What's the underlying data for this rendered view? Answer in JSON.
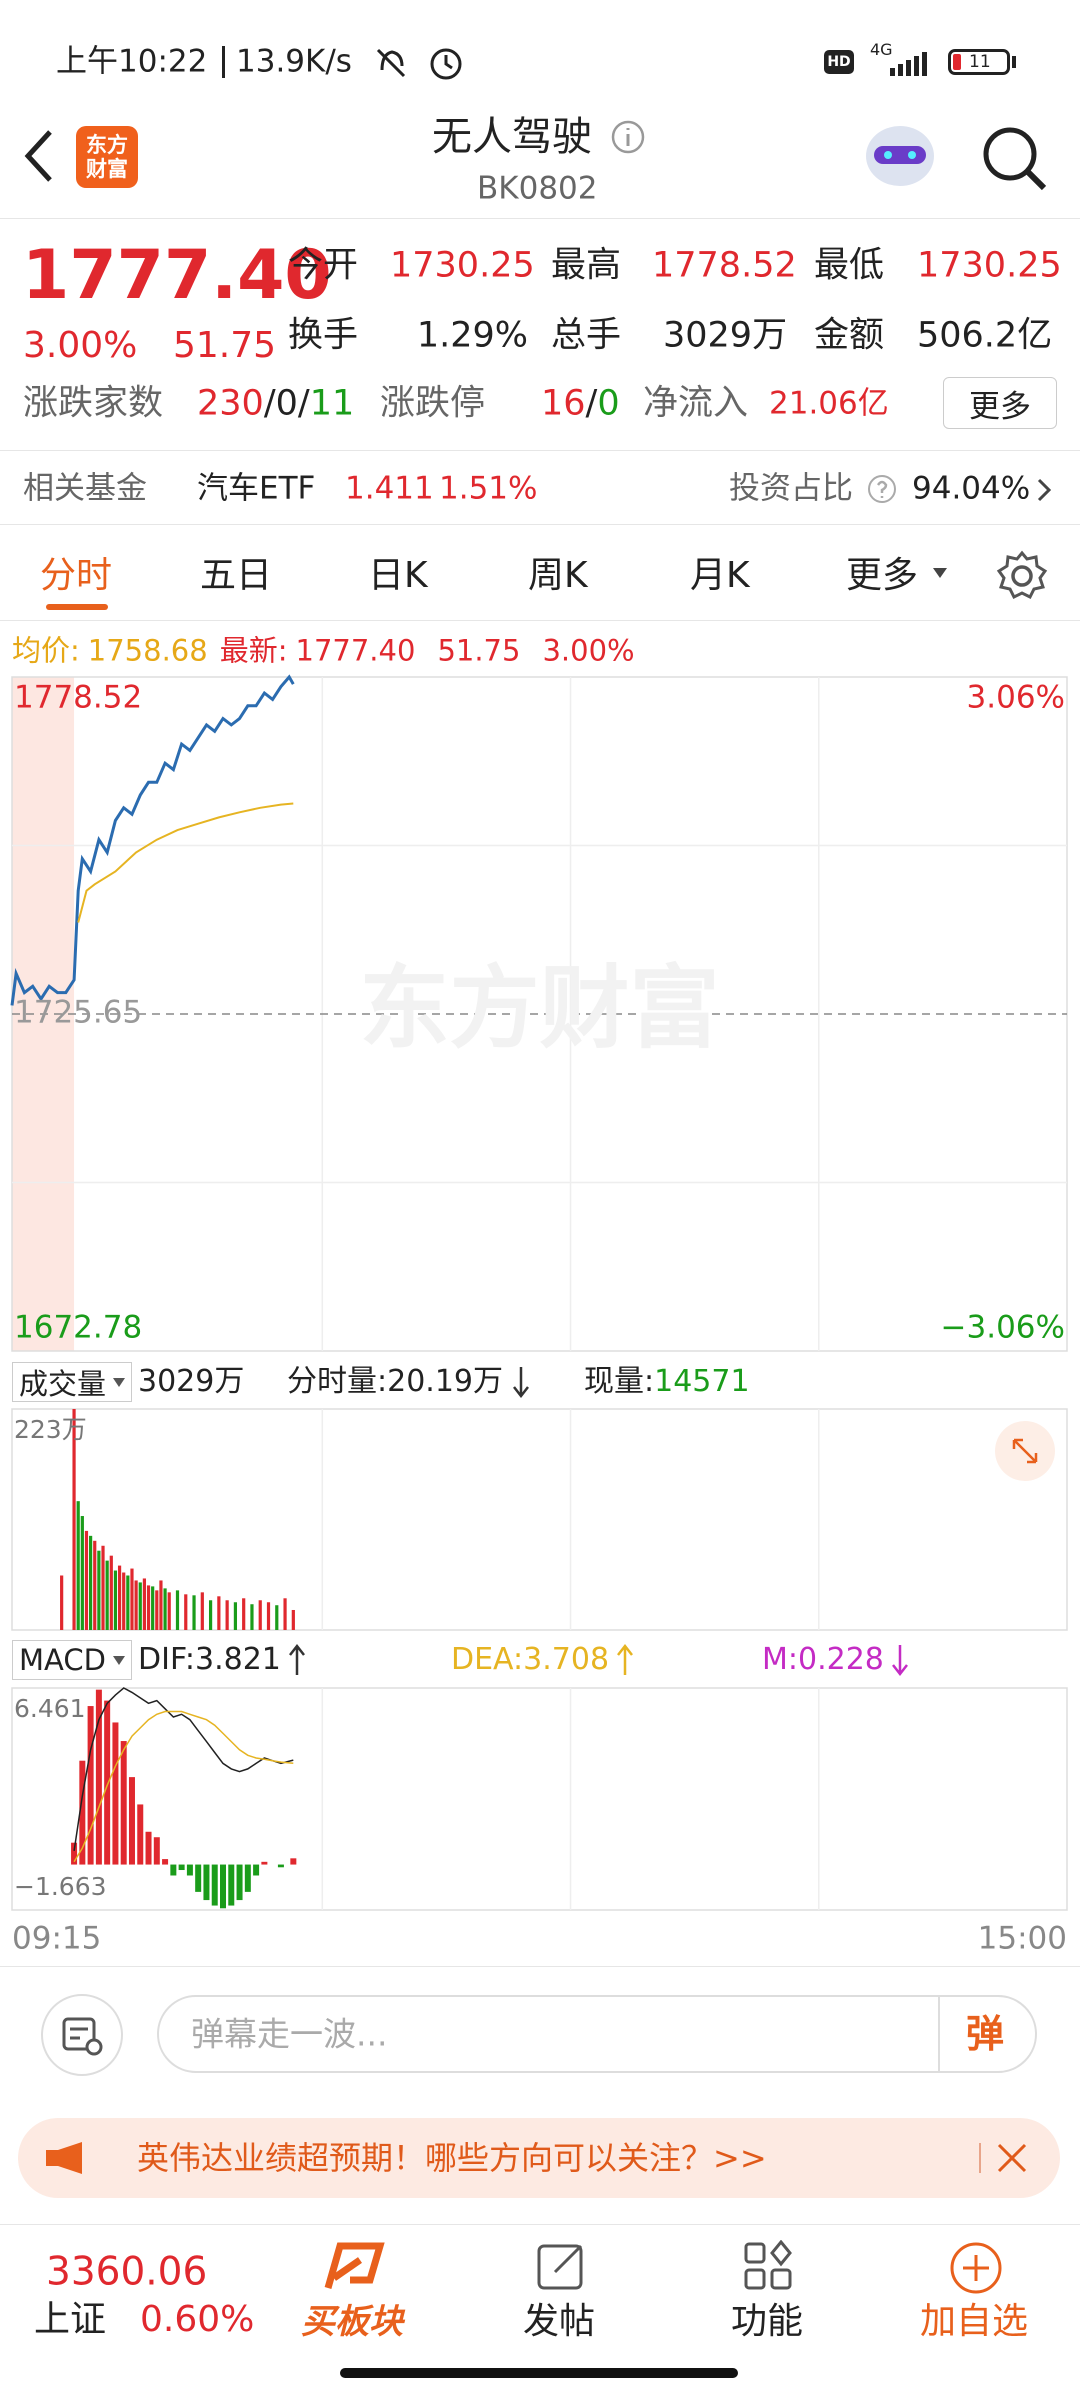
{
  "status_bar": {
    "time": "上午10:22",
    "speed": "13.9K/s",
    "hd": "HD",
    "network": "4G",
    "battery": "11"
  },
  "header": {
    "logo": [
      "东方",
      "财富"
    ],
    "title": "无人驾驶",
    "code": "BK0802"
  },
  "quote": {
    "price": "1777.40",
    "change_pct": "3.00%",
    "change": "51.75",
    "fields": [
      {
        "label": "今开",
        "value": "1730.25"
      },
      {
        "label": "最高",
        "value": "1778.52"
      },
      {
        "label": "最低",
        "value": "1730.25"
      },
      {
        "label": "换手",
        "value": "1.29%"
      },
      {
        "label": "总手",
        "value": "3029万"
      },
      {
        "label": "金额",
        "value": "506.2亿"
      }
    ],
    "breadth": {
      "label": "涨跌家数",
      "up": "230",
      "flat": "0",
      "down": "11",
      "sep": "/",
      "limit_label": "涨跌停",
      "limit_up": "16",
      "limit_down": "0",
      "inflow_label": "净流入",
      "inflow": "21.06亿",
      "more": "更多"
    }
  },
  "fund": {
    "label": "相关基金",
    "name": "汽车ETF",
    "price": "1.411",
    "pct": "1.51%",
    "ratio_label": "投资占比",
    "ratio": "94.04%"
  },
  "tabs": [
    "分时",
    "五日",
    "日K",
    "周K",
    "月K",
    "更多"
  ],
  "legend": {
    "avg_label": "均价:",
    "avg": "1758.68",
    "last_label": "最新:",
    "last": "1777.40",
    "change": "51.75",
    "pct": "3.00%"
  },
  "intraday": {
    "type": "line",
    "watermark": "东方财富",
    "xlim": [
      0,
      255
    ],
    "xgrid": [
      75,
      135,
      195
    ],
    "shade_x": [
      0,
      15
    ],
    "ylim": [
      1672.78,
      1778.52
    ],
    "yticks": [
      1778.52,
      1725.65,
      1672.78
    ],
    "ygrid": [
      1752.085,
      1699.215
    ],
    "y2lim": [
      -3.06,
      3.06
    ],
    "y2ticks": [
      {
        "value": 3.06,
        "label": "3.06%"
      },
      {
        "value": -3.06,
        "label": "−3.06%"
      }
    ],
    "series": [
      {
        "color": "#2b6cb0",
        "x": [
          0,
          1,
          3,
          5,
          7,
          9,
          11,
          13,
          15,
          16,
          17,
          19,
          21,
          23,
          25,
          27,
          29,
          31,
          33,
          35,
          37,
          39,
          41,
          43,
          45,
          47,
          49,
          51,
          53,
          55,
          57,
          59,
          61,
          63,
          65,
          67,
          68
        ],
        "values": [
          1727,
          1732,
          1729,
          1730,
          1728,
          1730,
          1729,
          1729,
          1731,
          1745,
          1750,
          1748,
          1753,
          1751,
          1756,
          1758,
          1757,
          1760,
          1762,
          1762,
          1765,
          1764,
          1768,
          1767,
          1769,
          1771,
          1770,
          1772,
          1771,
          1772,
          1774,
          1774,
          1776,
          1775,
          1777,
          1778.52,
          1777.4
        ]
      },
      {
        "color": "#e6b422",
        "x": [
          16,
          18,
          20,
          25,
          30,
          35,
          40,
          45,
          50,
          55,
          60,
          65,
          68
        ],
        "values": [
          1740,
          1745,
          1746,
          1748,
          1751,
          1753,
          1754.5,
          1755.5,
          1756.5,
          1757.3,
          1758,
          1758.5,
          1758.68
        ]
      }
    ]
  },
  "volume_header": {
    "selector": "成交量",
    "total": "3029万",
    "tick_label": "分时量:",
    "tick": "20.19万",
    "now_label": "现量:",
    "now": "14571"
  },
  "volume": {
    "type": "bar",
    "xlim": [
      0,
      255
    ],
    "ylim": [
      0,
      223
    ],
    "yticks": [
      {
        "value": 223,
        "label": "223万"
      }
    ],
    "x": [
      12,
      15,
      16,
      17,
      18,
      19,
      20,
      21,
      22,
      23,
      24,
      25,
      26,
      27,
      28,
      29,
      30,
      31,
      32,
      33,
      34,
      35,
      36,
      37,
      38,
      40,
      42,
      44,
      46,
      48,
      50,
      52,
      54,
      56,
      58,
      60,
      62,
      64,
      66,
      68
    ],
    "values": [
      55,
      223,
      130,
      115,
      100,
      95,
      90,
      80,
      85,
      70,
      75,
      60,
      65,
      58,
      55,
      62,
      50,
      48,
      52,
      45,
      44,
      40,
      50,
      42,
      38,
      40,
      36,
      35,
      38,
      30,
      34,
      30,
      28,
      32,
      26,
      30,
      28,
      25,
      32,
      20.19
    ],
    "colors": [
      "#e0282e",
      "#e0282e",
      "#1a9c1a",
      "#1a9c1a",
      "#e0282e",
      "#1a9c1a",
      "#e0282e",
      "#1a9c1a",
      "#e0282e",
      "#1a9c1a",
      "#e0282e",
      "#1a9c1a",
      "#e0282e",
      "#e0282e",
      "#1a9c1a",
      "#e0282e",
      "#e0282e",
      "#1a9c1a",
      "#e0282e",
      "#e0282e",
      "#1a9c1a",
      "#e0282e",
      "#e0282e",
      "#1a9c1a",
      "#e0282e",
      "#1a9c1a",
      "#e0282e",
      "#1a9c1a",
      "#e0282e",
      "#1a9c1a",
      "#e0282e",
      "#e0282e",
      "#1a9c1a",
      "#e0282e",
      "#1a9c1a",
      "#e0282e",
      "#e0282e",
      "#1a9c1a",
      "#e0282e",
      "#e0282e"
    ]
  },
  "macd_header": {
    "selector": "MACD",
    "dif": "DIF:3.821",
    "dea": "DEA:3.708",
    "m": "M:0.228"
  },
  "macd": {
    "type": "macd",
    "xlim": [
      0,
      255
    ],
    "ylim": [
      -1.663,
      6.461
    ],
    "yticks": [
      6.461,
      {
        "value": -1.663,
        "label": "−1.663"
      }
    ],
    "x": [
      15,
      17,
      19,
      21,
      23,
      25,
      27,
      29,
      31,
      33,
      35,
      37,
      39,
      41,
      43,
      45,
      47,
      49,
      51,
      53,
      55,
      57,
      59,
      61,
      63,
      65,
      68
    ],
    "dif": {
      "color": "#222222",
      "values": [
        0.5,
        2.5,
        4.2,
        5.3,
        5.9,
        6.2,
        6.46,
        6.3,
        6.1,
        5.9,
        6.0,
        5.7,
        5.4,
        5.5,
        5.3,
        4.9,
        4.5,
        4.1,
        3.7,
        3.5,
        3.4,
        3.5,
        3.7,
        3.9,
        3.8,
        3.7,
        3.821
      ]
    },
    "dea": {
      "color": "#e6b422",
      "values": [
        0.1,
        0.6,
        1.3,
        2.1,
        2.9,
        3.6,
        4.2,
        4.7,
        5.0,
        5.3,
        5.5,
        5.6,
        5.6,
        5.6,
        5.5,
        5.4,
        5.3,
        5.1,
        4.8,
        4.5,
        4.2,
        4.0,
        3.9,
        3.85,
        3.8,
        3.75,
        3.708
      ]
    },
    "m": {
      "values": [
        0.8,
        3.8,
        5.8,
        6.4,
        6.0,
        5.2,
        4.52,
        3.2,
        2.2,
        1.2,
        1.0,
        0.2,
        -0.4,
        -0.2,
        -0.4,
        -1.0,
        -1.3,
        -1.5,
        -1.6,
        -1.5,
        -1.3,
        -1.0,
        -0.4,
        0.1,
        0,
        -0.1,
        0.228
      ]
    }
  },
  "time_axis": {
    "xlim": [
      0,
      255
    ],
    "xticks": [
      {
        "value": 0,
        "label": "09:15"
      },
      {
        "value": 255,
        "label": "15:00"
      }
    ]
  },
  "comment": {
    "placeholder": "弹幕走一波...",
    "button": "弹"
  },
  "banner": {
    "text": "英伟达业绩超预期！哪些方向可以关注？>>"
  },
  "bottom_nav": {
    "index_value": "3360.06",
    "index_name": "上证",
    "index_pct": "0.60%",
    "items": [
      "买板块",
      "发帖",
      "功能",
      "加自选"
    ]
  }
}
